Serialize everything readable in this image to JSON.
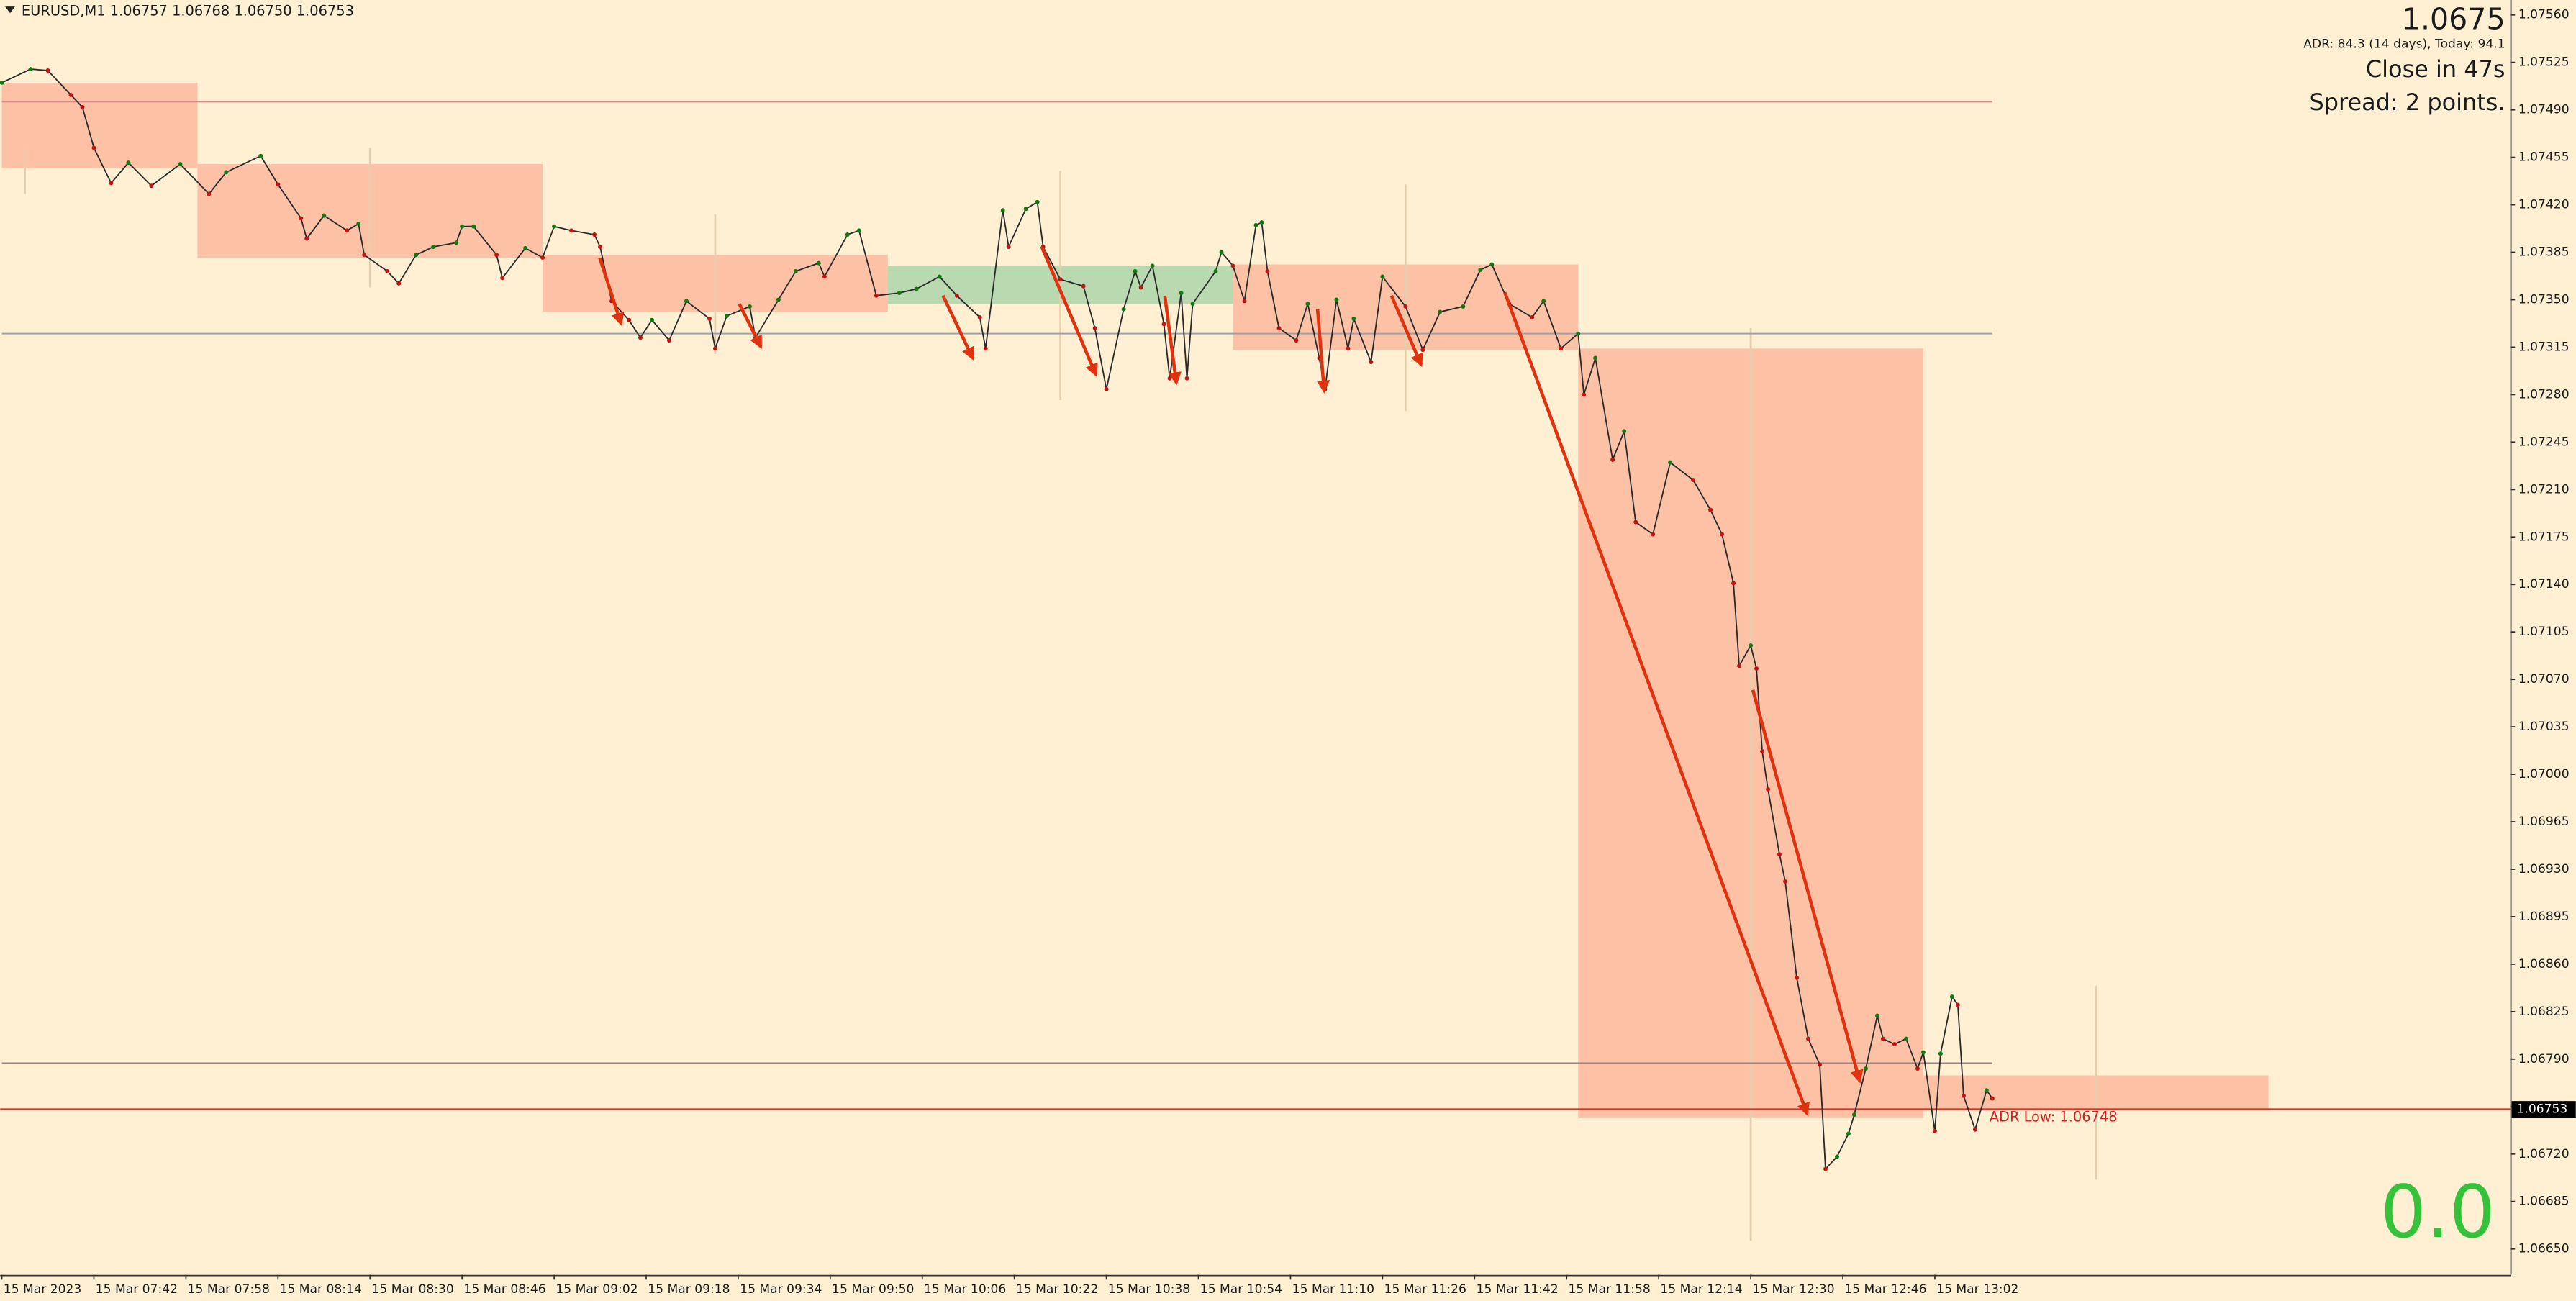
{
  "chart_data": {
    "type": "line",
    "title": "EURUSD,M1  1.06757 1.06768 1.06750 1.06753",
    "price_big": "1.0675",
    "adr_text": "ADR: 84.3 (14 days), Today: 94.1",
    "close_text": "Close in 47s",
    "spread_text": "Spread: 2 points.",
    "counter_text": "0.0",
    "adr_low_label": "ADR Low: 1.06748",
    "current_price": 1.06753,
    "up_color": "#0f7a0f",
    "down_color": "#c81010",
    "line_color": "#2a2a2a",
    "xlim": [
      0,
      436
    ],
    "ylim": [
      1.06631,
      1.07571
    ],
    "xticks": [
      {
        "value": 0,
        "label": "15 Mar 2023"
      },
      {
        "value": 16,
        "label": "15 Mar 07:42"
      },
      {
        "value": 32,
        "label": "15 Mar 07:58"
      },
      {
        "value": 48,
        "label": "15 Mar 08:14"
      },
      {
        "value": 64,
        "label": "15 Mar 08:30"
      },
      {
        "value": 80,
        "label": "15 Mar 08:46"
      },
      {
        "value": 96,
        "label": "15 Mar 09:02"
      },
      {
        "value": 112,
        "label": "15 Mar 09:18"
      },
      {
        "value": 128,
        "label": "15 Mar 09:34"
      },
      {
        "value": 144,
        "label": "15 Mar 09:50"
      },
      {
        "value": 160,
        "label": "15 Mar 10:06"
      },
      {
        "value": 176,
        "label": "15 Mar 10:22"
      },
      {
        "value": 192,
        "label": "15 Mar 10:38"
      },
      {
        "value": 208,
        "label": "15 Mar 10:54"
      },
      {
        "value": 224,
        "label": "15 Mar 11:10"
      },
      {
        "value": 240,
        "label": "15 Mar 11:26"
      },
      {
        "value": 256,
        "label": "15 Mar 11:42"
      },
      {
        "value": 272,
        "label": "15 Mar 11:58"
      },
      {
        "value": 288,
        "label": "15 Mar 12:14"
      },
      {
        "value": 304,
        "label": "15 Mar 12:30"
      },
      {
        "value": 320,
        "label": "15 Mar 12:46"
      },
      {
        "value": 336,
        "label": "15 Mar 13:02"
      }
    ],
    "yticks": [
      {
        "value": 1.0756,
        "label": "1.07560"
      },
      1.07525,
      {
        "value": 1.0749,
        "label": "1.07490"
      },
      1.07455,
      {
        "value": 1.0742,
        "label": "1.07420"
      },
      1.07385,
      {
        "value": 1.0735,
        "label": "1.07350"
      },
      1.07315,
      {
        "value": 1.0728,
        "label": "1.07280"
      },
      1.07245,
      {
        "value": 1.0721,
        "label": "1.07210"
      },
      1.07175,
      {
        "value": 1.0714,
        "label": "1.07140"
      },
      1.07105,
      {
        "value": 1.0707,
        "label": "1.07070"
      },
      1.07035,
      {
        "value": 1.07,
        "label": "1.07000"
      },
      1.06965,
      {
        "value": 1.0693,
        "label": "1.06930"
      },
      1.06895,
      {
        "value": 1.0686,
        "label": "1.06860"
      },
      1.06825,
      {
        "value": 1.0679,
        "label": "1.06790"
      },
      1.06755,
      {
        "value": 1.0672,
        "label": "1.06720"
      },
      1.06685,
      {
        "value": 1.0665,
        "label": "1.06650"
      }
    ],
    "zones": [
      {
        "start": 0,
        "end": 34,
        "high": 1.0751,
        "low": 1.07447,
        "color": "#fdc2a6"
      },
      {
        "start": 34,
        "end": 94,
        "high": 1.0745,
        "low": 1.07381,
        "color": "#fdc2a6"
      },
      {
        "start": 94,
        "end": 154,
        "high": 1.07383,
        "low": 1.07341,
        "color": "#fdc2a6"
      },
      {
        "start": 154,
        "end": 214,
        "high": 1.07375,
        "low": 1.07347,
        "color": "#b9d9b1"
      },
      {
        "start": 214,
        "end": 274,
        "high": 1.07376,
        "low": 1.07313,
        "color": "#fdc2a6"
      },
      {
        "start": 274,
        "end": 334,
        "high": 1.07314,
        "low": 1.06747,
        "color": "#fdc2a6"
      },
      {
        "start": 334,
        "end": 394,
        "high": 1.06778,
        "low": 1.06752,
        "color": "#fdc2a6"
      }
    ],
    "wicks": [
      {
        "x": 4,
        "high": 1.07462,
        "low": 1.07428
      },
      {
        "x": 64,
        "high": 1.07462,
        "low": 1.07359
      },
      {
        "x": 124,
        "high": 1.07413,
        "low": 1.0731
      },
      {
        "x": 184,
        "high": 1.07445,
        "low": 1.07276
      },
      {
        "x": 244,
        "high": 1.07435,
        "low": 1.07268
      },
      {
        "x": 304,
        "high": 1.07329,
        "low": 1.06656
      },
      {
        "x": 364,
        "high": 1.06844,
        "low": 1.06701
      }
    ],
    "hlines": [
      {
        "value": 1.07496,
        "color": "#d98a8a",
        "end": 346
      },
      {
        "value": 1.07325,
        "color": "#9aa0b0",
        "end": 346
      },
      {
        "value": 1.06787,
        "color": "#a08080",
        "end": 346
      }
    ],
    "x": [
      0,
      5,
      8,
      12,
      14,
      16,
      19,
      22,
      26,
      31,
      36,
      39,
      45,
      48,
      52,
      53,
      56,
      60,
      62,
      63,
      67,
      69,
      72,
      75,
      79,
      80,
      82,
      86,
      87,
      91,
      94,
      96,
      99,
      103,
      104,
      106,
      109,
      111,
      113,
      116,
      119,
      123,
      124,
      126,
      130,
      131,
      135,
      138,
      142,
      143,
      147,
      149,
      152,
      156,
      159,
      163,
      166,
      170,
      171,
      174,
      175,
      178,
      180,
      181,
      184,
      188,
      190,
      192,
      195,
      197,
      198,
      200,
      202,
      203,
      205,
      206,
      207,
      211,
      212,
      214,
      216,
      218,
      219,
      220,
      222,
      225,
      227,
      229,
      230,
      232,
      234,
      235,
      238,
      240,
      244,
      247,
      250,
      254,
      257,
      259,
      262,
      266,
      268,
      271,
      274,
      275,
      277,
      280,
      282,
      284,
      287,
      290,
      294,
      297,
      299,
      301,
      302,
      304,
      305,
      306,
      307,
      309,
      310,
      312,
      314,
      316,
      317,
      319,
      321,
      322,
      324,
      326,
      327,
      329,
      331,
      333,
      334,
      336,
      337,
      339,
      340,
      341,
      343,
      345,
      346
    ],
    "values": [
      1.0751,
      1.0752,
      1.07519,
      1.07501,
      1.07492,
      1.07462,
      1.07436,
      1.07451,
      1.07434,
      1.0745,
      1.07428,
      1.07444,
      1.07456,
      1.07435,
      1.0741,
      1.07395,
      1.07412,
      1.07401,
      1.07406,
      1.07383,
      1.07371,
      1.07362,
      1.07383,
      1.07389,
      1.07392,
      1.07404,
      1.07404,
      1.07383,
      1.07366,
      1.07388,
      1.07381,
      1.07404,
      1.07401,
      1.07398,
      1.07389,
      1.07349,
      1.07335,
      1.07322,
      1.07335,
      1.0732,
      1.07349,
      1.07336,
      1.07314,
      1.07338,
      1.07345,
      1.07322,
      1.0735,
      1.07371,
      1.07377,
      1.07367,
      1.07398,
      1.07401,
      1.07353,
      1.07355,
      1.07358,
      1.07367,
      1.07353,
      1.07337,
      1.07314,
      1.07416,
      1.07389,
      1.07417,
      1.07422,
      1.07389,
      1.07365,
      1.0736,
      1.07329,
      1.07284,
      1.07343,
      1.07371,
      1.07359,
      1.07375,
      1.07332,
      1.07292,
      1.07355,
      1.07292,
      1.07347,
      1.07371,
      1.07385,
      1.07375,
      1.07349,
      1.07405,
      1.07407,
      1.07371,
      1.07329,
      1.0732,
      1.07347,
      1.07307,
      1.07284,
      1.0735,
      1.07314,
      1.07336,
      1.07304,
      1.07367,
      1.07345,
      1.07313,
      1.07341,
      1.07345,
      1.07372,
      1.07376,
      1.07347,
      1.07337,
      1.07349,
      1.07314,
      1.07325,
      1.0728,
      1.07307,
      1.07232,
      1.07253,
      1.07186,
      1.07177,
      1.0723,
      1.07217,
      1.07195,
      1.07177,
      1.07141,
      1.0708,
      1.07095,
      1.07078,
      1.07017,
      1.06989,
      1.06941,
      1.06921,
      1.0685,
      1.06805,
      1.06786,
      1.06709,
      1.06718,
      1.06735,
      1.06749,
      1.06783,
      1.06822,
      1.06805,
      1.06801,
      1.06805,
      1.06783,
      1.06795,
      1.06737,
      1.06794,
      1.06836,
      1.0683,
      1.06763,
      1.06738,
      1.06767,
      1.06761
    ]
  }
}
